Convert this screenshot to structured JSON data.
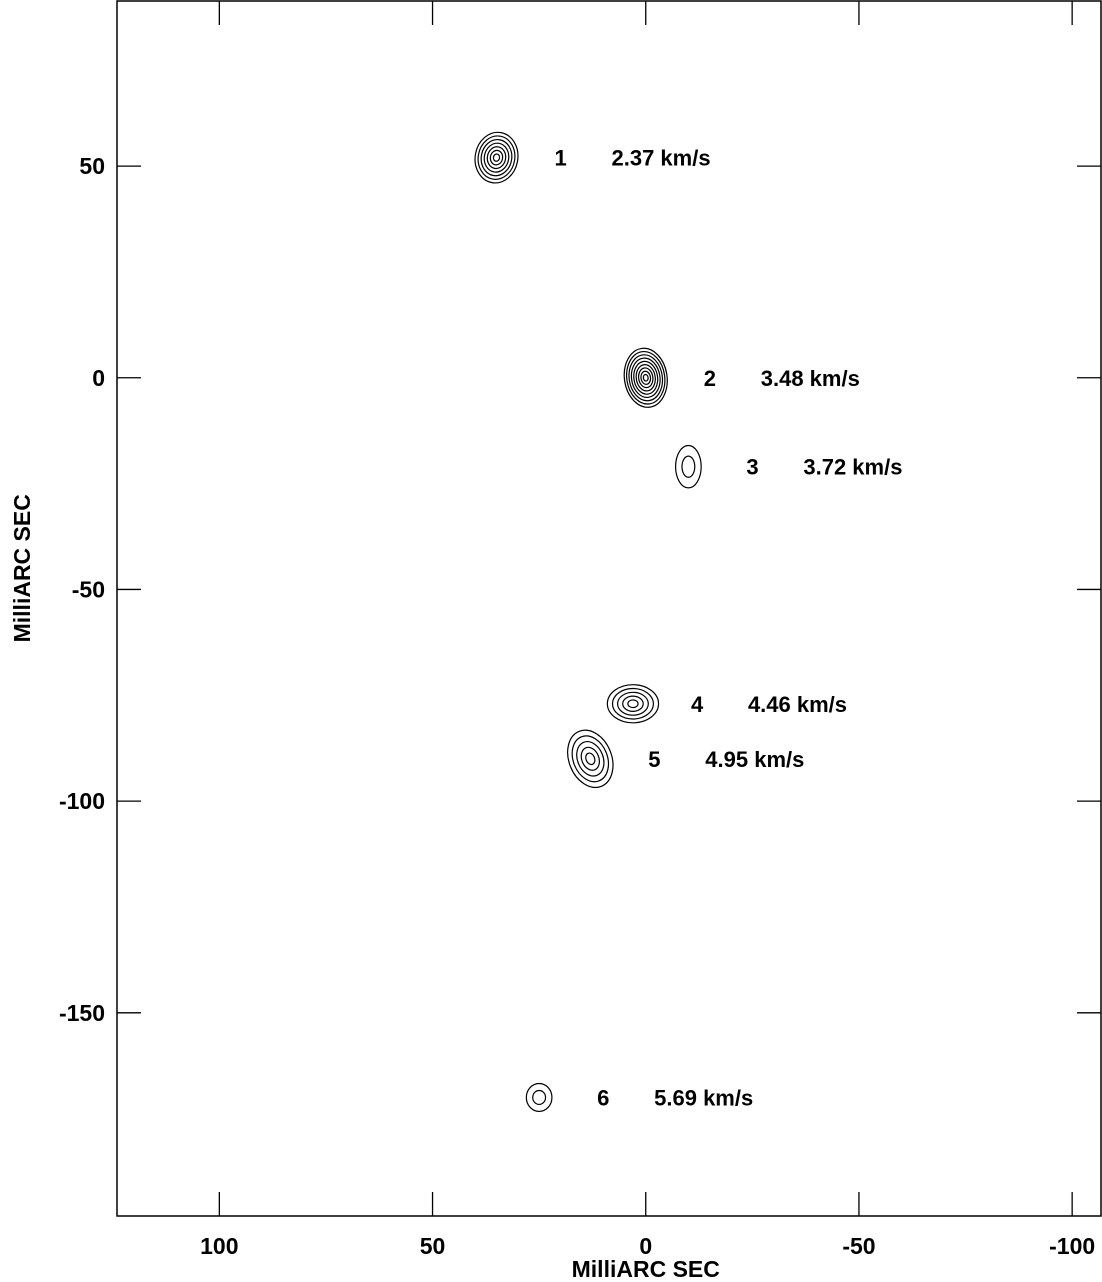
{
  "chart_data": {
    "type": "scatter",
    "title": "",
    "xlabel": "MilliARC SEC",
    "ylabel": "MilliARC SEC",
    "x_reversed": true,
    "xlim": [
      124,
      -107
    ],
    "ylim": [
      -198,
      89
    ],
    "xticks": [
      100,
      50,
      0,
      -50,
      -100
    ],
    "xtick_labels": [
      "100",
      "50",
      "0",
      "-50",
      "-100"
    ],
    "yticks": [
      50,
      0,
      -50,
      -100,
      -150
    ],
    "ytick_labels": [
      "50",
      "0",
      "-50",
      "-100",
      "-150"
    ],
    "grid": false,
    "legend": "none",
    "colors": {
      "contour": "#000000",
      "axis": "#000000",
      "background": "#ffffff"
    },
    "points": [
      {
        "id": "1",
        "x": 35,
        "y": 52,
        "velocity": "2.37 km/s",
        "rx": 5,
        "ry": 6,
        "tilt": 10,
        "levels": 7
      },
      {
        "id": "2",
        "x": 0,
        "y": 0,
        "velocity": "3.48 km/s",
        "rx": 5,
        "ry": 7,
        "tilt": -8,
        "levels": 9
      },
      {
        "id": "3",
        "x": -10,
        "y": -21,
        "velocity": "3.72 km/s",
        "rx": 3,
        "ry": 5,
        "tilt": 0,
        "levels": 2
      },
      {
        "id": "4",
        "x": 3,
        "y": -77,
        "velocity": "4.46 km/s",
        "rx": 6,
        "ry": 4.5,
        "tilt": 0,
        "levels": 5
      },
      {
        "id": "5",
        "x": 13,
        "y": -90,
        "velocity": "4.95 km/s",
        "rx": 5,
        "ry": 7,
        "tilt": -22,
        "levels": 5
      },
      {
        "id": "6",
        "x": 25,
        "y": -170,
        "velocity": "5.69 km/s",
        "rx": 3,
        "ry": 3.3,
        "tilt": 0,
        "levels": 2
      }
    ]
  }
}
